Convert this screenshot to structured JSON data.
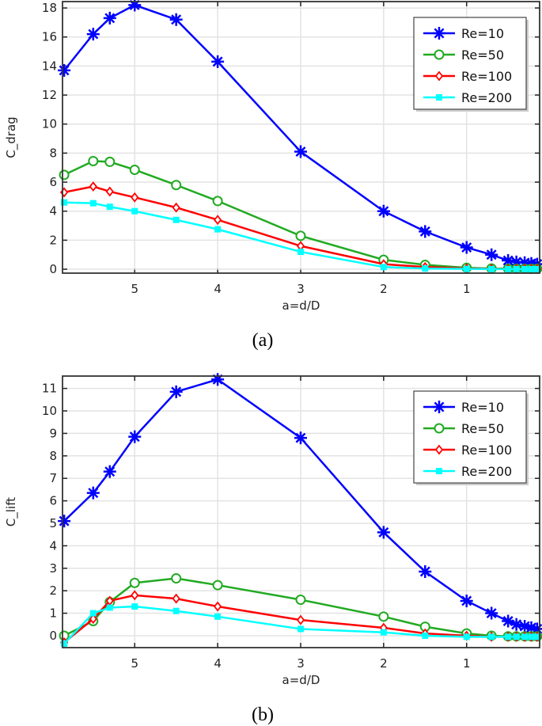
{
  "chart_data": [
    {
      "type": "line",
      "caption": "(a)",
      "xlabel": "a=d/D",
      "ylabel": "C_drag",
      "x_reversed": true,
      "xlim": [
        5.87,
        0.12
      ],
      "ylim": [
        -0.27,
        18.44
      ],
      "xticks": [
        5,
        4,
        3,
        2,
        1
      ],
      "yticks": [
        0,
        2,
        4,
        6,
        8,
        10,
        12,
        14,
        16,
        18
      ],
      "grid": true,
      "legend_position": "top-right",
      "x": [
        5.85,
        5.5,
        5.3,
        5,
        4.5,
        4,
        3,
        2,
        1.5,
        1,
        0.7,
        0.5,
        0.4,
        0.3,
        0.22,
        0.15
      ],
      "series": [
        {
          "name": "Re=10",
          "color": "#0000ff",
          "marker": "asterisk",
          "values": [
            13.7,
            16.2,
            17.3,
            18.2,
            17.2,
            14.3,
            8.1,
            4.0,
            2.6,
            1.5,
            1.0,
            0.6,
            0.5,
            0.45,
            0.4,
            0.35
          ]
        },
        {
          "name": "Re=50",
          "color": "#22aa22",
          "marker": "circle",
          "values": [
            6.5,
            7.45,
            7.4,
            6.85,
            5.8,
            4.7,
            2.3,
            0.65,
            0.3,
            0.1,
            0.05,
            0.04,
            0.03,
            0.03,
            0.03,
            0.03
          ]
        },
        {
          "name": "Re=100",
          "color": "#ff0000",
          "marker": "diamond",
          "values": [
            5.3,
            5.7,
            5.35,
            4.95,
            4.25,
            3.4,
            1.6,
            0.35,
            0.15,
            0.05,
            0.02,
            0.02,
            0.02,
            0.02,
            0.02,
            0.02
          ]
        },
        {
          "name": "Re=200",
          "color": "#00ffff",
          "marker": "square",
          "values": [
            4.6,
            4.55,
            4.3,
            4.0,
            3.4,
            2.75,
            1.2,
            0.15,
            0.05,
            0.02,
            0.01,
            0.01,
            0.01,
            0.01,
            0.01,
            0.01
          ]
        }
      ]
    },
    {
      "type": "line",
      "caption": "(b)",
      "xlabel": "a=d/D",
      "ylabel": "C_lift",
      "x_reversed": true,
      "xlim": [
        5.87,
        0.12
      ],
      "ylim": [
        -0.53,
        11.55
      ],
      "xticks": [
        5,
        4,
        3,
        2,
        1
      ],
      "yticks": [
        0,
        1,
        2,
        3,
        4,
        5,
        6,
        7,
        8,
        9,
        10,
        11
      ],
      "grid": true,
      "legend_position": "top-right",
      "x": [
        5.85,
        5.5,
        5.3,
        5,
        4.5,
        4,
        3,
        2,
        1.5,
        1,
        0.7,
        0.5,
        0.4,
        0.3,
        0.22,
        0.15
      ],
      "series": [
        {
          "name": "Re=10",
          "color": "#0000ff",
          "marker": "asterisk",
          "values": [
            5.1,
            6.35,
            7.3,
            8.85,
            10.85,
            11.4,
            8.8,
            4.6,
            2.85,
            1.55,
            1.0,
            0.65,
            0.5,
            0.42,
            0.36,
            0.3
          ]
        },
        {
          "name": "Re=50",
          "color": "#22aa22",
          "marker": "circle",
          "values": [
            0.0,
            0.65,
            1.5,
            2.35,
            2.55,
            2.25,
            1.6,
            0.85,
            0.4,
            0.1,
            0.0,
            -0.03,
            -0.03,
            -0.03,
            -0.03,
            -0.03
          ]
        },
        {
          "name": "Re=100",
          "color": "#ff0000",
          "marker": "diamond",
          "values": [
            -0.3,
            0.75,
            1.55,
            1.8,
            1.65,
            1.3,
            0.7,
            0.35,
            0.1,
            0.0,
            -0.05,
            -0.05,
            -0.05,
            -0.05,
            -0.05,
            -0.05
          ]
        },
        {
          "name": "Re=200",
          "color": "#00ffff",
          "marker": "square",
          "values": [
            -0.35,
            1.0,
            1.25,
            1.3,
            1.1,
            0.85,
            0.3,
            0.15,
            0.0,
            -0.05,
            -0.05,
            -0.05,
            -0.05,
            -0.05,
            -0.05,
            -0.05
          ]
        }
      ]
    }
  ]
}
